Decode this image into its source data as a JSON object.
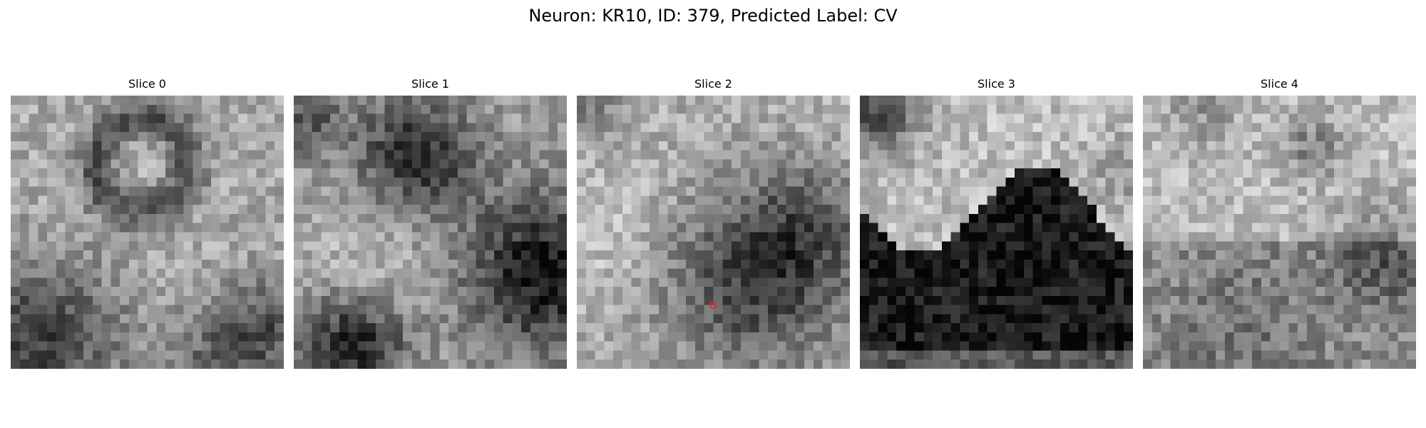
{
  "title": "Neuron: KR10, ID: 379, Predicted Label: CV",
  "marker_color": "#e8262b",
  "slices": [
    {
      "label": "Slice 0",
      "seed": 11,
      "has_marker": false
    },
    {
      "label": "Slice 1",
      "seed": 23,
      "has_marker": false
    },
    {
      "label": "Slice 2",
      "seed": 37,
      "has_marker": true
    },
    {
      "label": "Slice 3",
      "seed": 51,
      "has_marker": false
    },
    {
      "label": "Slice 4",
      "seed": 67,
      "has_marker": false
    }
  ]
}
